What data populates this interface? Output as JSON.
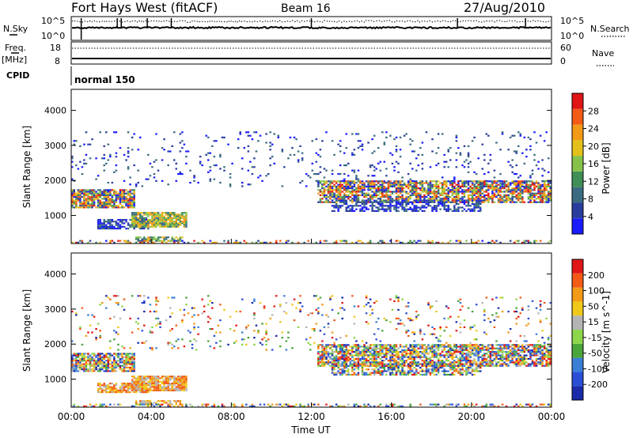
{
  "header": {
    "station": "Fort Hays West (fitACF)",
    "beam": "Beam 16",
    "date": "27/Aug/2010"
  },
  "top_panels": {
    "nsky_label": "N.Sky",
    "nsearch_label": "N.Search",
    "nsky_ticks": [
      "10^5",
      "10^0"
    ],
    "nsearch_ticks": [
      "10^5",
      "10^0"
    ],
    "freq_label": "Freq.",
    "freq_unit": "[MHz]",
    "freq_ticks": [
      "18",
      "8"
    ],
    "nave_label": "Nave",
    "nave_ticks": [
      "60",
      "0"
    ],
    "cpid_label": "CPID",
    "cpid_value": "normal 150"
  },
  "colors": {
    "power": [
      "#1a1aff",
      "#2a3d9e",
      "#3a6b80",
      "#3f8f57",
      "#86c24a",
      "#e3c11a",
      "#f29a17",
      "#f25a16",
      "#e01616"
    ],
    "velocity": [
      "#1a2aa8",
      "#2a4fd6",
      "#3a7fd6",
      "#4aa53a",
      "#8cd64a",
      "#b4b4b4",
      "#f0c81a",
      "#f29a17",
      "#f25a16",
      "#e01616"
    ]
  },
  "chart_data": [
    {
      "type": "heatmap",
      "name": "Power",
      "xlabel": "",
      "ylabel": "Slant Range [km]",
      "yticks": [
        "1000",
        "2000",
        "3000",
        "4000"
      ],
      "ylim": [
        200,
        4600
      ],
      "xlim_hours": [
        0,
        24
      ],
      "colorbar": {
        "label": "Power [dB]",
        "ticks": [
          "4",
          "8",
          "12",
          "16",
          "20",
          "24",
          "28"
        ],
        "range": [
          0,
          32
        ]
      },
      "scatter_regions_hours_km": [
        {
          "t0": 0.0,
          "t1": 3.2,
          "r0": 1200,
          "r1": 1750,
          "density": 0.85,
          "value_mix": "mixed"
        },
        {
          "t0": 1.3,
          "t1": 3.9,
          "r0": 600,
          "r1": 900,
          "density": 0.8,
          "value_mix": "low"
        },
        {
          "t0": 3.0,
          "t1": 5.8,
          "r0": 650,
          "r1": 1100,
          "density": 0.9,
          "value_mix": "mid"
        },
        {
          "t0": 3.2,
          "t1": 5.6,
          "r0": 250,
          "r1": 400,
          "density": 0.7,
          "value_mix": "mid"
        },
        {
          "t0": 0.0,
          "t1": 24.0,
          "r0": 200,
          "r1": 300,
          "density": 0.35,
          "value_mix": "mixed"
        },
        {
          "t0": 12.3,
          "t1": 24.0,
          "r0": 1350,
          "r1": 2000,
          "density": 0.75,
          "value_mix": "mixed"
        },
        {
          "t0": 13.0,
          "t1": 20.5,
          "r0": 1100,
          "r1": 1450,
          "density": 0.6,
          "value_mix": "low"
        },
        {
          "t0": 0.0,
          "t1": 24.0,
          "r0": 1800,
          "r1": 3400,
          "density": 0.06,
          "value_mix": "low"
        }
      ]
    },
    {
      "type": "heatmap",
      "name": "Velocity",
      "xlabel": "Time UT",
      "ylabel": "Slant Range [km]",
      "yticks": [
        "1000",
        "2000",
        "3000",
        "4000"
      ],
      "ylim": [
        200,
        4600
      ],
      "xlim_hours": [
        0,
        24
      ],
      "xticks": [
        "00:00",
        "04:00",
        "08:00",
        "12:00",
        "16:00",
        "20:00",
        "00:00"
      ],
      "colorbar": {
        "label": "Velocity [m s^-1]",
        "ticks": [
          "200",
          "100",
          "50",
          "15",
          "-15",
          "-50",
          "-100",
          "-200"
        ],
        "range": [
          -250,
          250
        ]
      },
      "scatter_regions_hours_km": [
        {
          "t0": 0.0,
          "t1": 3.2,
          "r0": 1200,
          "r1": 1750,
          "density": 0.85,
          "value_mix": "mixed"
        },
        {
          "t0": 1.3,
          "t1": 3.9,
          "r0": 600,
          "r1": 900,
          "density": 0.8,
          "value_mix": "negative"
        },
        {
          "t0": 3.0,
          "t1": 5.8,
          "r0": 650,
          "r1": 1100,
          "density": 0.9,
          "value_mix": "negative"
        },
        {
          "t0": 3.2,
          "t1": 5.6,
          "r0": 250,
          "r1": 400,
          "density": 0.7,
          "value_mix": "negative"
        },
        {
          "t0": 0.0,
          "t1": 24.0,
          "r0": 200,
          "r1": 300,
          "density": 0.35,
          "value_mix": "mixed"
        },
        {
          "t0": 12.3,
          "t1": 24.0,
          "r0": 1350,
          "r1": 2000,
          "density": 0.75,
          "value_mix": "mixed"
        },
        {
          "t0": 13.0,
          "t1": 20.5,
          "r0": 1100,
          "r1": 1450,
          "density": 0.6,
          "value_mix": "mixed"
        },
        {
          "t0": 0.0,
          "t1": 24.0,
          "r0": 1800,
          "r1": 3400,
          "density": 0.06,
          "value_mix": "mixed"
        }
      ]
    }
  ]
}
